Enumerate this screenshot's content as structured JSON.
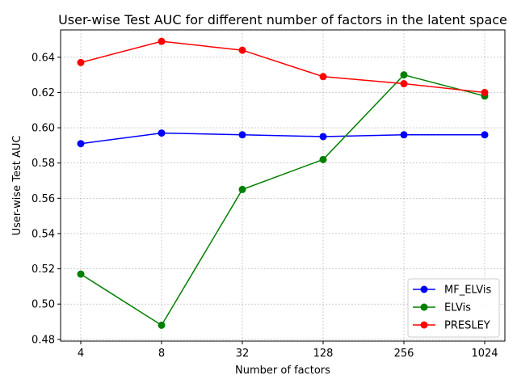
{
  "chart_data": {
    "type": "line",
    "title": "User-wise Test AUC for different number of factors in the latent space",
    "xlabel": "Number of factors",
    "ylabel": "User-wise Test AUC",
    "categories": [
      "4",
      "8",
      "32",
      "128",
      "256",
      "1024"
    ],
    "ylim": [
      0.479,
      0.6555
    ],
    "yticks": [
      0.48,
      0.5,
      0.52,
      0.54,
      0.56,
      0.58,
      0.6,
      0.62,
      0.64
    ],
    "ytick_labels": [
      "0.48",
      "0.50",
      "0.52",
      "0.54",
      "0.56",
      "0.58",
      "0.60",
      "0.62",
      "0.64"
    ],
    "grid": true,
    "legend_position": "lower-right",
    "series": [
      {
        "name": "MF_ELVis",
        "color": "#0000ff",
        "values": [
          0.591,
          0.597,
          0.596,
          0.595,
          0.596,
          0.596
        ]
      },
      {
        "name": "ELVis",
        "color": "#008000",
        "values": [
          0.517,
          0.488,
          0.565,
          0.582,
          0.63,
          0.618
        ]
      },
      {
        "name": "PRESLEY",
        "color": "#ff0000",
        "values": [
          0.637,
          0.649,
          0.644,
          0.629,
          0.625,
          0.62
        ]
      }
    ]
  }
}
